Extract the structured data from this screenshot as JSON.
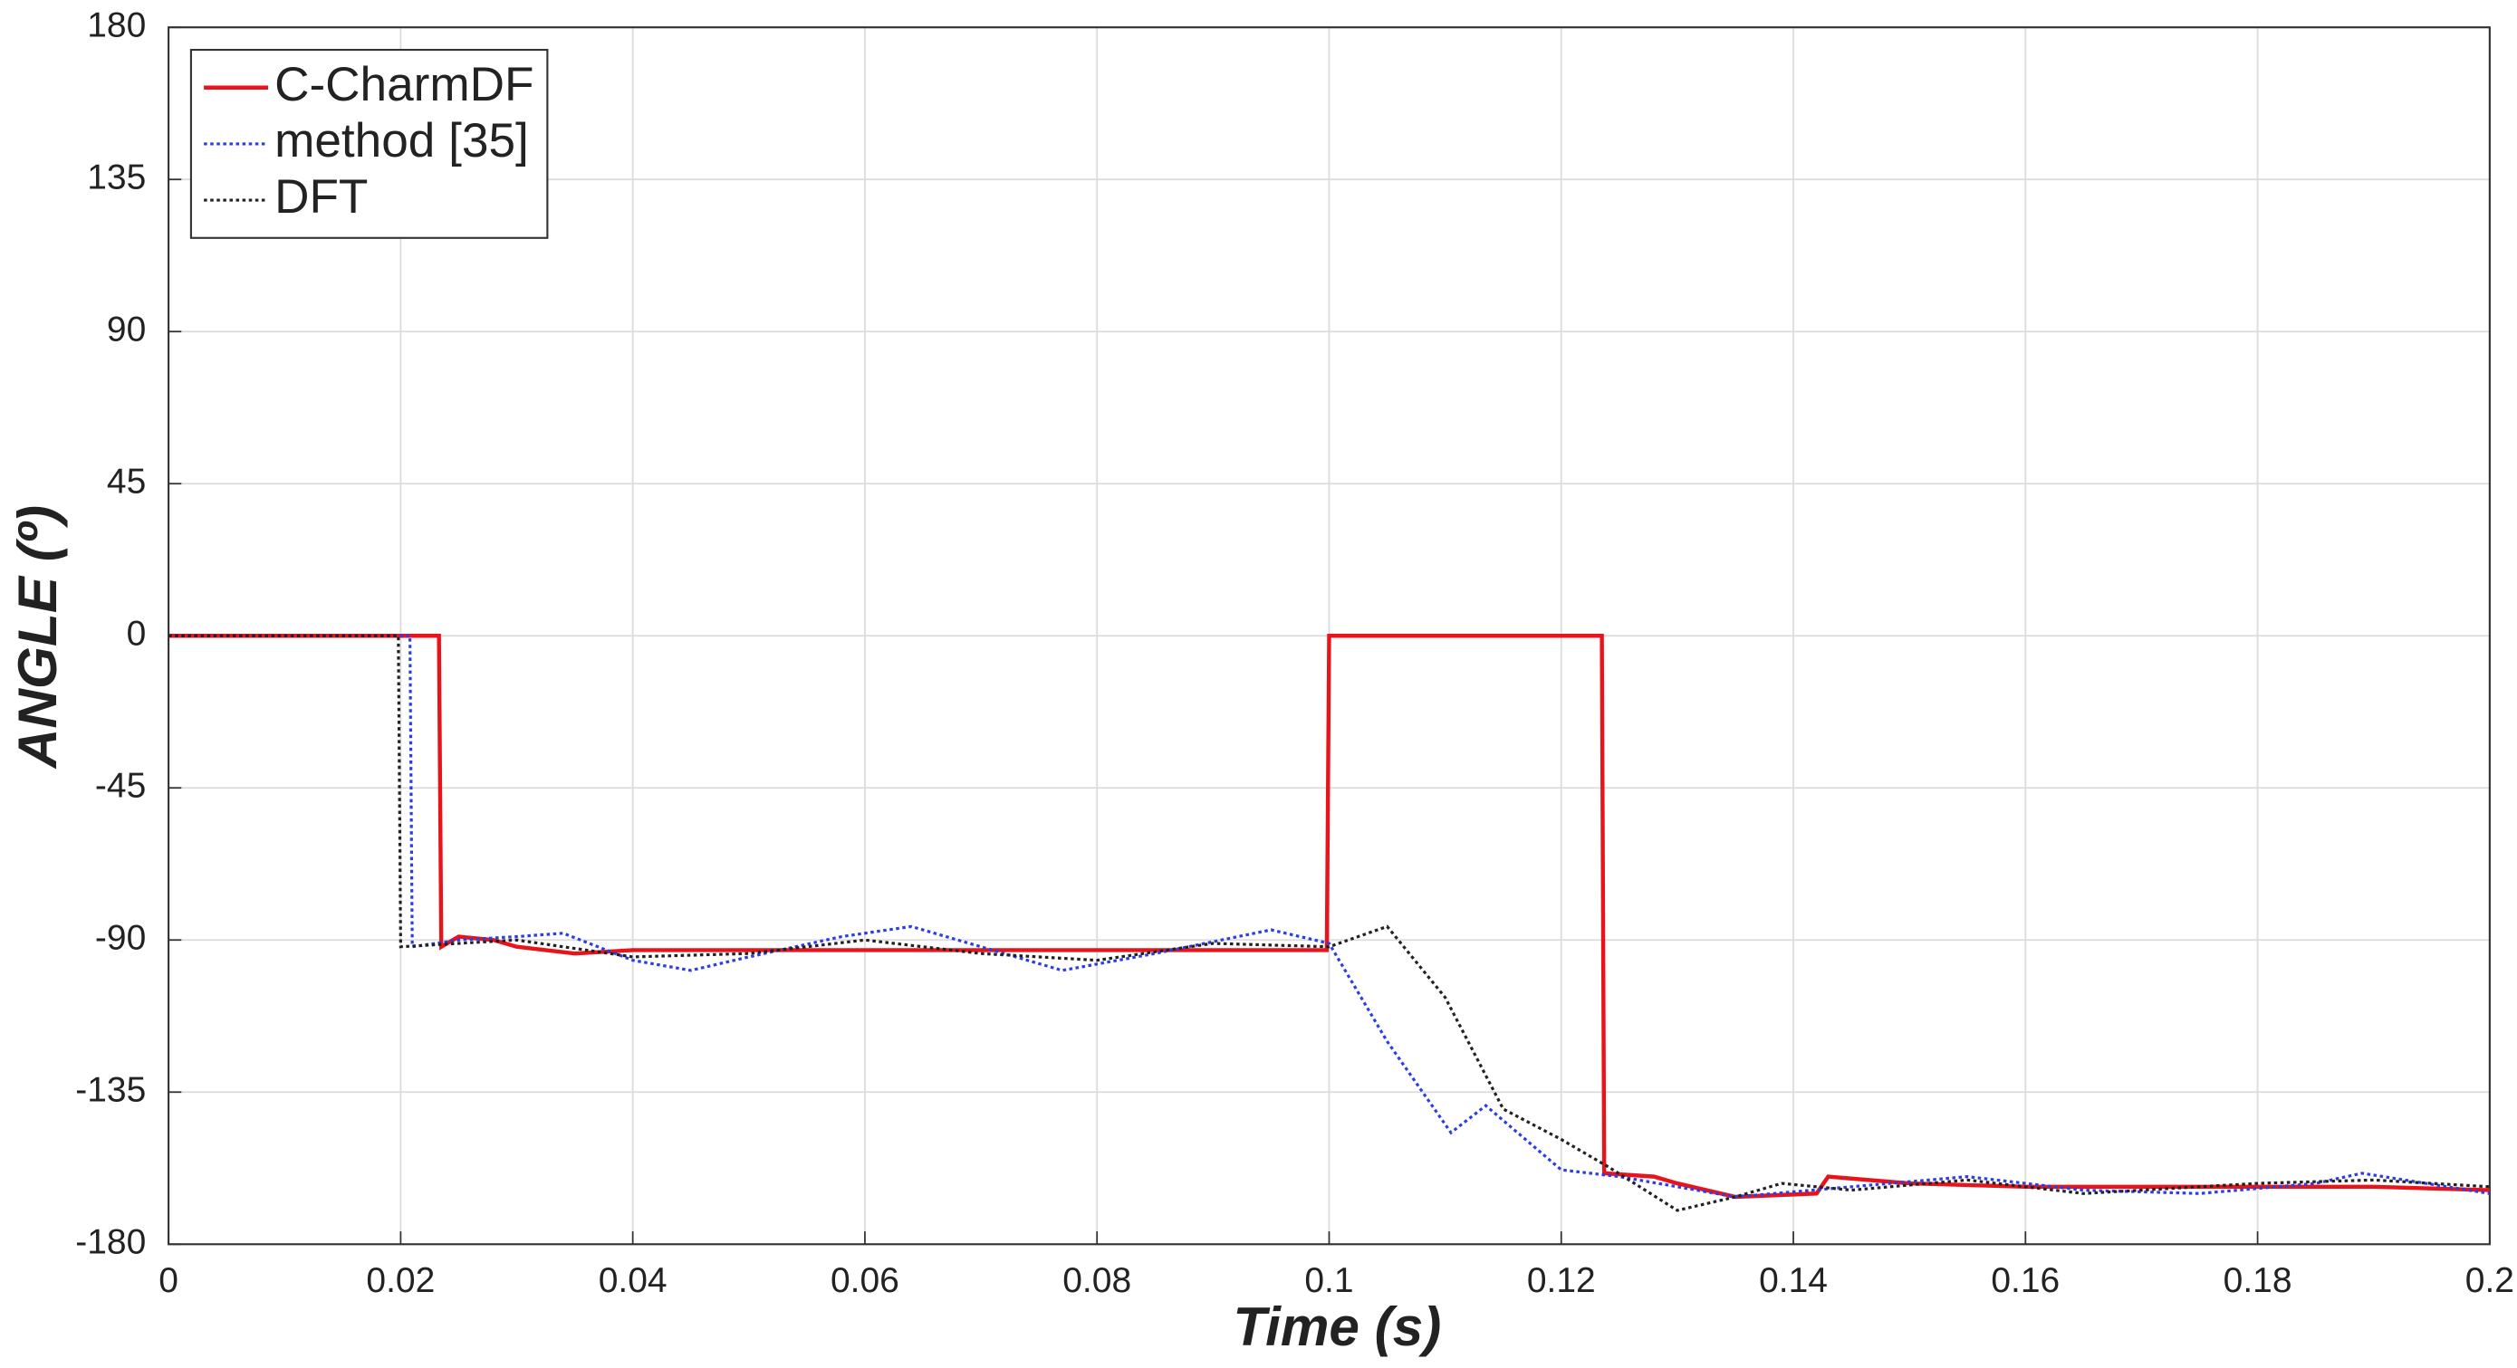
{
  "chart_data": {
    "type": "line",
    "xlabel": "Time (s)",
    "ylabel": "ANGLE (º)",
    "xlim": [
      0,
      0.2
    ],
    "ylim": [
      -180,
      180
    ],
    "xticks": [
      0,
      0.02,
      0.04,
      0.06,
      0.08,
      0.1,
      0.12,
      0.14,
      0.16,
      0.18,
      0.2
    ],
    "yticks": [
      -180,
      -135,
      -90,
      -45,
      0,
      45,
      90,
      135,
      180
    ],
    "grid": true,
    "legend": "upper-left",
    "series": [
      {
        "name": "C-CharmDF",
        "color": "#e8141c",
        "dash": "solid",
        "x": [
          0,
          0.0233,
          0.0235,
          0.025,
          0.028,
          0.03,
          0.035,
          0.04,
          0.05,
          0.06,
          0.07,
          0.08,
          0.09,
          0.0998,
          0.1,
          0.1235,
          0.1237,
          0.128,
          0.13,
          0.135,
          0.142,
          0.143,
          0.15,
          0.16,
          0.17,
          0.18,
          0.19,
          0.2
        ],
        "values": [
          0,
          0,
          -92,
          -89,
          -90,
          -92,
          -94,
          -93,
          -93,
          -93,
          -93,
          -93,
          -93,
          -93,
          0,
          0,
          -159,
          -160,
          -162,
          -166,
          -165,
          -160,
          -162,
          -163,
          -163,
          -163,
          -163,
          -164
        ]
      },
      {
        "name": "method [35]",
        "color": "#2a3ee8",
        "dash": "dotted",
        "x": [
          0,
          0.0208,
          0.021,
          0.025,
          0.03,
          0.034,
          0.04,
          0.045,
          0.05,
          0.058,
          0.064,
          0.07,
          0.077,
          0.085,
          0.095,
          0.1,
          0.105,
          0.1105,
          0.1135,
          0.12,
          0.125,
          0.135,
          0.145,
          0.155,
          0.165,
          0.175,
          0.185,
          0.189,
          0.2
        ],
        "values": [
          0,
          0,
          -92,
          -90,
          -89,
          -88,
          -96,
          -99,
          -95,
          -89,
          -86,
          -92,
          -99,
          -94,
          -87,
          -91,
          -120,
          -147,
          -139,
          -158,
          -160,
          -166,
          -163,
          -160,
          -164,
          -165,
          -162,
          -159,
          -165
        ]
      },
      {
        "name": "DFT",
        "color": "#222222",
        "dash": "dotted",
        "x": [
          0,
          0.0198,
          0.02,
          0.025,
          0.03,
          0.04,
          0.05,
          0.06,
          0.07,
          0.08,
          0.09,
          0.1,
          0.105,
          0.11,
          0.115,
          0.12,
          0.124,
          0.13,
          0.135,
          0.139,
          0.145,
          0.155,
          0.165,
          0.18,
          0.19,
          0.2
        ],
        "values": [
          0,
          0,
          -92,
          -91,
          -90,
          -95,
          -94,
          -90,
          -94,
          -96,
          -91,
          -92,
          -86,
          -107,
          -140,
          -149,
          -157,
          -170,
          -166,
          -162,
          -164,
          -161,
          -165,
          -162,
          -161,
          -163
        ]
      }
    ]
  }
}
